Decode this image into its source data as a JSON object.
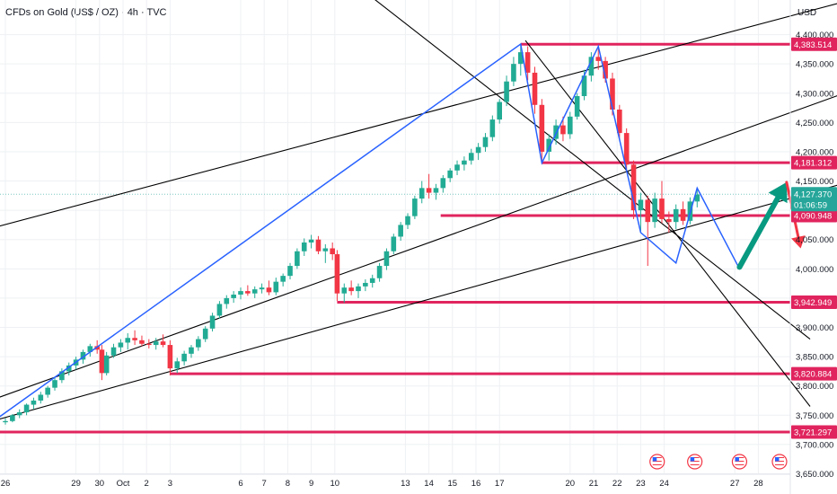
{
  "header": {
    "symbol": "CFDs on Gold (US$ / OZ) · 4h · TVC",
    "currency": "USD"
  },
  "colors": {
    "up": "#22ab94",
    "down": "#f23645",
    "level": "#e0245e",
    "channel": "#000000",
    "path": "#2962ff",
    "arrow_up": "#089981",
    "arrow_down": "#f23645",
    "current": "#26a69a",
    "grid": "#eef0f3"
  },
  "chart_data": {
    "type": "candlestick",
    "y_axis": {
      "range": [
        3625,
        4460
      ],
      "ticks": [
        "4,400.000",
        "4,350.000",
        "4,300.000",
        "4,250.000",
        "4,200.000",
        "4,150.000",
        "4,100.000",
        "4,050.000",
        "4,000.000",
        "3,950.000",
        "3,900.000",
        "3,850.000",
        "3,800.000",
        "3,750.000",
        "3,700.000",
        "3,650.000"
      ]
    },
    "x_axis": {
      "labels": [
        {
          "day": 0,
          "label": "26"
        },
        {
          "day": 3,
          "label": "29"
        },
        {
          "day": 4,
          "label": "30"
        },
        {
          "day": 5,
          "label": "Oct"
        },
        {
          "day": 6,
          "label": "2"
        },
        {
          "day": 7,
          "label": "3"
        },
        {
          "day": 10,
          "label": "6"
        },
        {
          "day": 11,
          "label": "7"
        },
        {
          "day": 12,
          "label": "8"
        },
        {
          "day": 13,
          "label": "9"
        },
        {
          "day": 14,
          "label": "10"
        },
        {
          "day": 17,
          "label": "13"
        },
        {
          "day": 18,
          "label": "14"
        },
        {
          "day": 19,
          "label": "15"
        },
        {
          "day": 20,
          "label": "16"
        },
        {
          "day": 21,
          "label": "17"
        },
        {
          "day": 24,
          "label": "20"
        },
        {
          "day": 25,
          "label": "21"
        },
        {
          "day": 26,
          "label": "22"
        },
        {
          "day": 27,
          "label": "23"
        },
        {
          "day": 28,
          "label": "24"
        },
        {
          "day": 31,
          "label": "27"
        },
        {
          "day": 32,
          "label": "28"
        }
      ]
    },
    "candles": [
      {
        "d": 0.0,
        "o": 3738,
        "h": 3745,
        "l": 3734,
        "c": 3740
      },
      {
        "d": 0.3,
        "o": 3740,
        "h": 3752,
        "l": 3738,
        "c": 3750
      },
      {
        "d": 0.6,
        "o": 3750,
        "h": 3760,
        "l": 3745,
        "c": 3755
      },
      {
        "d": 0.9,
        "o": 3755,
        "h": 3770,
        "l": 3750,
        "c": 3768
      },
      {
        "d": 1.2,
        "o": 3768,
        "h": 3780,
        "l": 3760,
        "c": 3775
      },
      {
        "d": 1.5,
        "o": 3775,
        "h": 3790,
        "l": 3770,
        "c": 3785
      },
      {
        "d": 1.8,
        "o": 3785,
        "h": 3800,
        "l": 3780,
        "c": 3797
      },
      {
        "d": 2.1,
        "o": 3797,
        "h": 3815,
        "l": 3792,
        "c": 3810
      },
      {
        "d": 2.4,
        "o": 3810,
        "h": 3830,
        "l": 3805,
        "c": 3825
      },
      {
        "d": 2.7,
        "o": 3825,
        "h": 3840,
        "l": 3818,
        "c": 3835
      },
      {
        "d": 3.0,
        "o": 3835,
        "h": 3850,
        "l": 3828,
        "c": 3845
      },
      {
        "d": 3.3,
        "o": 3845,
        "h": 3862,
        "l": 3838,
        "c": 3858
      },
      {
        "d": 3.6,
        "o": 3858,
        "h": 3872,
        "l": 3850,
        "c": 3868
      },
      {
        "d": 3.9,
        "o": 3868,
        "h": 3878,
        "l": 3855,
        "c": 3862
      },
      {
        "d": 4.1,
        "o": 3862,
        "h": 3870,
        "l": 3810,
        "c": 3822
      },
      {
        "d": 4.3,
        "o": 3822,
        "h": 3858,
        "l": 3818,
        "c": 3852
      },
      {
        "d": 4.6,
        "o": 3852,
        "h": 3872,
        "l": 3848,
        "c": 3866
      },
      {
        "d": 4.9,
        "o": 3866,
        "h": 3880,
        "l": 3858,
        "c": 3874
      },
      {
        "d": 5.2,
        "o": 3874,
        "h": 3890,
        "l": 3862,
        "c": 3882
      },
      {
        "d": 5.5,
        "o": 3882,
        "h": 3895,
        "l": 3870,
        "c": 3878
      },
      {
        "d": 5.8,
        "o": 3878,
        "h": 3886,
        "l": 3868,
        "c": 3872
      },
      {
        "d": 6.1,
        "o": 3872,
        "h": 3880,
        "l": 3864,
        "c": 3870
      },
      {
        "d": 6.4,
        "o": 3870,
        "h": 3882,
        "l": 3862,
        "c": 3876
      },
      {
        "d": 6.7,
        "o": 3876,
        "h": 3888,
        "l": 3866,
        "c": 3870
      },
      {
        "d": 7.0,
        "o": 3870,
        "h": 3878,
        "l": 3818,
        "c": 3830
      },
      {
        "d": 7.3,
        "o": 3830,
        "h": 3848,
        "l": 3822,
        "c": 3842
      },
      {
        "d": 7.6,
        "o": 3842,
        "h": 3860,
        "l": 3835,
        "c": 3855
      },
      {
        "d": 7.9,
        "o": 3855,
        "h": 3870,
        "l": 3848,
        "c": 3866
      },
      {
        "d": 8.2,
        "o": 3866,
        "h": 3885,
        "l": 3860,
        "c": 3880
      },
      {
        "d": 8.5,
        "o": 3880,
        "h": 3902,
        "l": 3875,
        "c": 3898
      },
      {
        "d": 8.8,
        "o": 3898,
        "h": 3925,
        "l": 3893,
        "c": 3920
      },
      {
        "d": 9.1,
        "o": 3920,
        "h": 3945,
        "l": 3915,
        "c": 3940
      },
      {
        "d": 9.4,
        "o": 3940,
        "h": 3955,
        "l": 3932,
        "c": 3950
      },
      {
        "d": 9.7,
        "o": 3950,
        "h": 3962,
        "l": 3942,
        "c": 3956
      },
      {
        "d": 10.0,
        "o": 3956,
        "h": 3968,
        "l": 3948,
        "c": 3962
      },
      {
        "d": 10.3,
        "o": 3962,
        "h": 3972,
        "l": 3954,
        "c": 3958
      },
      {
        "d": 10.6,
        "o": 3958,
        "h": 3970,
        "l": 3950,
        "c": 3965
      },
      {
        "d": 10.9,
        "o": 3965,
        "h": 3975,
        "l": 3958,
        "c": 3968
      },
      {
        "d": 11.2,
        "o": 3968,
        "h": 3980,
        "l": 3955,
        "c": 3960
      },
      {
        "d": 11.5,
        "o": 3960,
        "h": 3985,
        "l": 3955,
        "c": 3978
      },
      {
        "d": 11.8,
        "o": 3978,
        "h": 3992,
        "l": 3970,
        "c": 3988
      },
      {
        "d": 12.1,
        "o": 3988,
        "h": 4010,
        "l": 3982,
        "c": 4005
      },
      {
        "d": 12.4,
        "o": 4005,
        "h": 4035,
        "l": 4000,
        "c": 4030
      },
      {
        "d": 12.7,
        "o": 4030,
        "h": 4052,
        "l": 4022,
        "c": 4045
      },
      {
        "d": 13.0,
        "o": 4045,
        "h": 4058,
        "l": 4035,
        "c": 4050
      },
      {
        "d": 13.3,
        "o": 4050,
        "h": 4056,
        "l": 4025,
        "c": 4030
      },
      {
        "d": 13.6,
        "o": 4030,
        "h": 4042,
        "l": 4010,
        "c": 4035
      },
      {
        "d": 13.9,
        "o": 4035,
        "h": 4045,
        "l": 4015,
        "c": 4025
      },
      {
        "d": 14.1,
        "o": 4025,
        "h": 4032,
        "l": 3945,
        "c": 3958
      },
      {
        "d": 14.4,
        "o": 3958,
        "h": 3975,
        "l": 3942,
        "c": 3968
      },
      {
        "d": 14.7,
        "o": 3968,
        "h": 3980,
        "l": 3955,
        "c": 3962
      },
      {
        "d": 15.0,
        "o": 3962,
        "h": 3975,
        "l": 3950,
        "c": 3970
      },
      {
        "d": 15.3,
        "o": 3970,
        "h": 3982,
        "l": 3962,
        "c": 3976
      },
      {
        "d": 15.6,
        "o": 3976,
        "h": 3990,
        "l": 3968,
        "c": 3984
      },
      {
        "d": 15.9,
        "o": 3984,
        "h": 4010,
        "l": 3978,
        "c": 4005
      },
      {
        "d": 16.2,
        "o": 4005,
        "h": 4035,
        "l": 3998,
        "c": 4030
      },
      {
        "d": 16.5,
        "o": 4030,
        "h": 4060,
        "l": 4025,
        "c": 4055
      },
      {
        "d": 16.8,
        "o": 4055,
        "h": 4080,
        "l": 4048,
        "c": 4075
      },
      {
        "d": 17.1,
        "o": 4075,
        "h": 4095,
        "l": 4068,
        "c": 4090
      },
      {
        "d": 17.4,
        "o": 4090,
        "h": 4125,
        "l": 4085,
        "c": 4120
      },
      {
        "d": 17.7,
        "o": 4120,
        "h": 4150,
        "l": 4112,
        "c": 4138
      },
      {
        "d": 18.0,
        "o": 4138,
        "h": 4162,
        "l": 4120,
        "c": 4130
      },
      {
        "d": 18.3,
        "o": 4130,
        "h": 4145,
        "l": 4118,
        "c": 4138
      },
      {
        "d": 18.6,
        "o": 4138,
        "h": 4160,
        "l": 4130,
        "c": 4155
      },
      {
        "d": 18.9,
        "o": 4155,
        "h": 4172,
        "l": 4148,
        "c": 4168
      },
      {
        "d": 19.2,
        "o": 4168,
        "h": 4185,
        "l": 4160,
        "c": 4178
      },
      {
        "d": 19.5,
        "o": 4178,
        "h": 4192,
        "l": 4168,
        "c": 4185
      },
      {
        "d": 19.8,
        "o": 4185,
        "h": 4205,
        "l": 4178,
        "c": 4198
      },
      {
        "d": 20.1,
        "o": 4198,
        "h": 4215,
        "l": 4186,
        "c": 4208
      },
      {
        "d": 20.4,
        "o": 4208,
        "h": 4232,
        "l": 4200,
        "c": 4225
      },
      {
        "d": 20.7,
        "o": 4225,
        "h": 4262,
        "l": 4218,
        "c": 4255
      },
      {
        "d": 21.0,
        "o": 4255,
        "h": 4290,
        "l": 4248,
        "c": 4285
      },
      {
        "d": 21.3,
        "o": 4285,
        "h": 4330,
        "l": 4278,
        "c": 4320
      },
      {
        "d": 21.6,
        "o": 4320,
        "h": 4362,
        "l": 4312,
        "c": 4350
      },
      {
        "d": 21.9,
        "o": 4350,
        "h": 4384,
        "l": 4330,
        "c": 4370
      },
      {
        "d": 22.2,
        "o": 4370,
        "h": 4380,
        "l": 4322,
        "c": 4335
      },
      {
        "d": 22.5,
        "o": 4335,
        "h": 4345,
        "l": 4265,
        "c": 4280
      },
      {
        "d": 22.8,
        "o": 4280,
        "h": 4290,
        "l": 4182,
        "c": 4200
      },
      {
        "d": 23.1,
        "o": 4200,
        "h": 4230,
        "l": 4185,
        "c": 4222
      },
      {
        "d": 23.4,
        "o": 4222,
        "h": 4255,
        "l": 4212,
        "c": 4245
      },
      {
        "d": 23.7,
        "o": 4245,
        "h": 4260,
        "l": 4218,
        "c": 4230
      },
      {
        "d": 24.0,
        "o": 4230,
        "h": 4268,
        "l": 4222,
        "c": 4260
      },
      {
        "d": 24.3,
        "o": 4260,
        "h": 4300,
        "l": 4255,
        "c": 4295
      },
      {
        "d": 24.6,
        "o": 4295,
        "h": 4340,
        "l": 4288,
        "c": 4330
      },
      {
        "d": 24.9,
        "o": 4330,
        "h": 4370,
        "l": 4320,
        "c": 4362
      },
      {
        "d": 25.2,
        "o": 4362,
        "h": 4380,
        "l": 4340,
        "c": 4355
      },
      {
        "d": 25.5,
        "o": 4355,
        "h": 4362,
        "l": 4318,
        "c": 4325
      },
      {
        "d": 25.8,
        "o": 4325,
        "h": 4335,
        "l": 4262,
        "c": 4272
      },
      {
        "d": 26.1,
        "o": 4272,
        "h": 4280,
        "l": 4220,
        "c": 4232
      },
      {
        "d": 26.4,
        "o": 4232,
        "h": 4240,
        "l": 4168,
        "c": 4178
      },
      {
        "d": 26.7,
        "o": 4178,
        "h": 4185,
        "l": 4085,
        "c": 4100
      },
      {
        "d": 27.0,
        "o": 4100,
        "h": 4130,
        "l": 4062,
        "c": 4118
      },
      {
        "d": 27.3,
        "o": 4118,
        "h": 4125,
        "l": 4005,
        "c": 4080
      },
      {
        "d": 27.6,
        "o": 4080,
        "h": 4130,
        "l": 4070,
        "c": 4120
      },
      {
        "d": 27.9,
        "o": 4120,
        "h": 4150,
        "l": 4078,
        "c": 4085
      },
      {
        "d": 28.2,
        "o": 4085,
        "h": 4098,
        "l": 4062,
        "c": 4080
      },
      {
        "d": 28.5,
        "o": 4080,
        "h": 4110,
        "l": 4068,
        "c": 4102
      },
      {
        "d": 28.8,
        "o": 4102,
        "h": 4115,
        "l": 4075,
        "c": 4082
      },
      {
        "d": 29.1,
        "o": 4082,
        "h": 4122,
        "l": 4076,
        "c": 4115
      },
      {
        "d": 29.4,
        "o": 4115,
        "h": 4138,
        "l": 4105,
        "c": 4127
      }
    ],
    "price_levels": [
      {
        "label": "4,383.514",
        "value": 4383.514,
        "from_day": 21.9
      },
      {
        "label": "4,181.312",
        "value": 4181.312,
        "from_day": 22.8
      },
      {
        "label": "4,090.948",
        "value": 4090.948,
        "from_day": 18.5
      },
      {
        "label": "3,942.949",
        "value": 3942.949,
        "from_day": 14.1
      },
      {
        "label": "3,820.884",
        "value": 3820.884,
        "from_day": 7.0
      },
      {
        "label": "3,721.297",
        "value": 3721.297,
        "from_day": -1
      }
    ],
    "current_price": {
      "label": "4,127.370",
      "countdown": "01:06:59",
      "value": 4127.37
    },
    "trend_lines": [
      {
        "from": {
          "d": -1,
          "v": 4065
        },
        "to": {
          "d": 36,
          "v": 4460
        }
      },
      {
        "from": {
          "d": -1,
          "v": 3770
        },
        "to": {
          "d": 36,
          "v": 4305
        }
      },
      {
        "from": {
          "d": -1,
          "v": 3735
        },
        "to": {
          "d": 36,
          "v": 4150
        }
      },
      {
        "from": {
          "d": 15.7,
          "v": 4460
        },
        "to": {
          "d": 34.2,
          "v": 3880
        }
      },
      {
        "from": {
          "d": 22.1,
          "v": 4390
        },
        "to": {
          "d": 34.2,
          "v": 3765
        }
      }
    ],
    "projected_path": [
      {
        "d": -0.5,
        "v": 3740
      },
      {
        "d": 21.9,
        "v": 4384
      },
      {
        "d": 22.8,
        "v": 4181
      },
      {
        "d": 25.2,
        "v": 4380
      },
      {
        "d": 27.0,
        "v": 4062
      },
      {
        "d": 28.5,
        "v": 4010
      },
      {
        "d": 29.4,
        "v": 4138
      },
      {
        "d": 31.2,
        "v": 4000
      }
    ],
    "forecast_arrows": [
      {
        "direction": "up",
        "from": {
          "d": 31.2,
          "v": 4003
        },
        "to": {
          "d": 33.2,
          "v": 4148
        }
      },
      {
        "direction": "down",
        "from": {
          "d": 33.2,
          "v": 4148
        },
        "to": {
          "d": 33.8,
          "v": 4035
        }
      }
    ],
    "event_markers": [
      {
        "day": 27.7,
        "name": "us-flag-icon"
      },
      {
        "day": 29.3,
        "name": "us-flag-icon"
      },
      {
        "day": 31.2,
        "name": "us-flag-icon"
      },
      {
        "day": 32.9,
        "name": "us-flag-icon"
      }
    ]
  }
}
